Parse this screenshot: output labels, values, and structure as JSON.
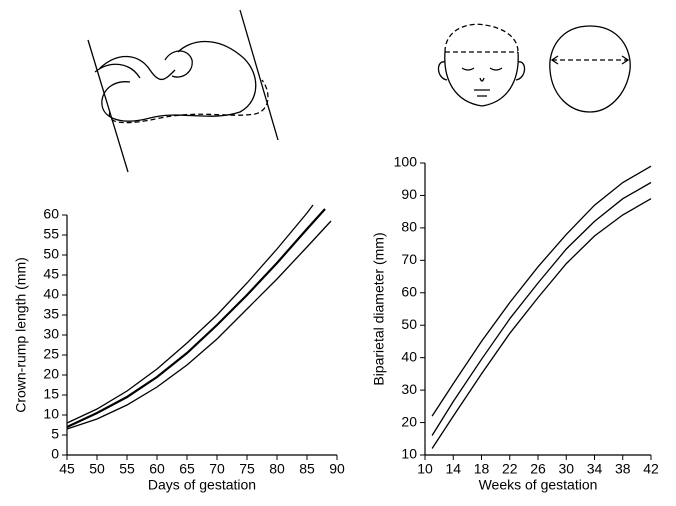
{
  "chart_data": [
    {
      "type": "line",
      "xlabel": "Days of gestation",
      "ylabel": "Crown-rump length (mm)",
      "xlim": [
        45,
        90
      ],
      "xticks": [
        45,
        50,
        55,
        60,
        65,
        70,
        75,
        80,
        85,
        90
      ],
      "ylim": [
        0,
        60
      ],
      "yticks": [
        0,
        5,
        10,
        15,
        20,
        25,
        30,
        35,
        40,
        45,
        50,
        55,
        60
      ],
      "series": [
        {
          "color": "#000000",
          "x": [
            45,
            50,
            55,
            60,
            65,
            70,
            75,
            80,
            85,
            86
          ],
          "values": [
            8,
            11.5,
            16,
            21.5,
            28,
            35,
            43,
            51.5,
            60.5,
            62.5
          ]
        },
        {
          "color": "#000000",
          "x": [
            45,
            50,
            55,
            60,
            65,
            70,
            75,
            80,
            85,
            88
          ],
          "values": [
            7,
            10.5,
            14.5,
            19.5,
            25.5,
            32.5,
            40,
            48,
            56.5,
            61.5
          ]
        },
        {
          "color": "#000000",
          "x": [
            45,
            50,
            55,
            60,
            65,
            70,
            75,
            80,
            85,
            89
          ],
          "values": [
            6.5,
            9,
            12.5,
            17,
            22.5,
            29,
            36.5,
            44,
            52,
            58.5
          ]
        }
      ]
    },
    {
      "type": "line",
      "xlabel": "Weeks of gestation",
      "ylabel": "Biparietal diameter (mm)",
      "xlim": [
        10,
        42
      ],
      "xticks": [
        10,
        14,
        18,
        22,
        26,
        30,
        34,
        38,
        42
      ],
      "ylim": [
        10,
        100
      ],
      "yticks": [
        10,
        20,
        30,
        40,
        50,
        60,
        70,
        80,
        90,
        100
      ],
      "series": [
        {
          "color": "#000000",
          "x": [
            11,
            14,
            18,
            22,
            26,
            30,
            34,
            38,
            42
          ],
          "values": [
            22,
            32,
            45,
            57,
            68,
            78,
            87,
            94,
            99
          ]
        },
        {
          "color": "#000000",
          "x": [
            11,
            14,
            18,
            22,
            26,
            30,
            34,
            38,
            42
          ],
          "values": [
            16,
            26.5,
            39.5,
            52,
            63,
            73.5,
            82,
            89,
            94
          ]
        },
        {
          "color": "#000000",
          "x": [
            11,
            14,
            18,
            22,
            26,
            30,
            34,
            38,
            42
          ],
          "values": [
            12,
            22,
            35,
            47.5,
            58.5,
            69,
            77.5,
            84,
            89
          ]
        }
      ]
    }
  ]
}
